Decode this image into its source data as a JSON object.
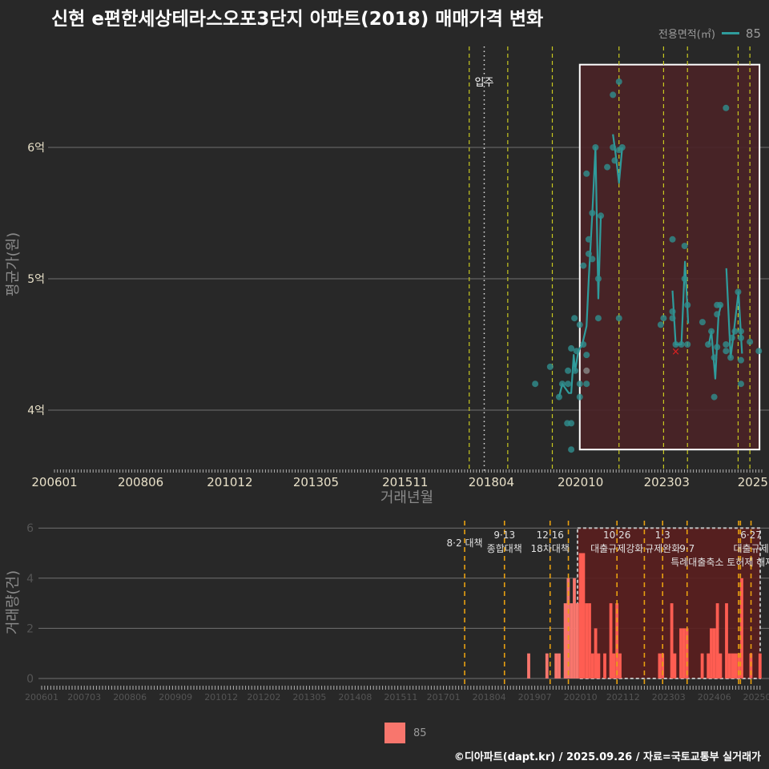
{
  "title": "신현 e편한세상테라스오포3단지 아파트(2018) 매매가격 변화",
  "legend": {
    "title": "전용면적(㎡)",
    "series_label": "85",
    "bar_label": "85"
  },
  "footer": "©디아파트(dapt.kr) / 2025.09.26 / 자료=국토교통부 실거래가",
  "colors": {
    "background": "#282828",
    "line": "#2f9c9c",
    "point": "#2f8f8f",
    "bar": "#f8766d",
    "highlight": "#5a2020",
    "policy_line_top": "#c8c820",
    "policy_line_bottom": "#e8a010",
    "marker_x": "#e02020"
  },
  "chart_data": [
    {
      "type": "scatter",
      "title": "신현 e편한세상테라스오포3단지 아파트(2018) 매매가격 변화",
      "xlabel": "거래년월",
      "ylabel": "평균가(원)",
      "ylim": [
        3.54,
        6.94
      ],
      "xlim_years": [
        2006.0,
        2025.85
      ],
      "yticks": [
        {
          "value": 4,
          "label": "4억"
        },
        {
          "value": 5,
          "label": "5억"
        },
        {
          "value": 6,
          "label": "6억"
        }
      ],
      "xticks": [
        "200601",
        "200806",
        "201012",
        "201305",
        "201511",
        "201804",
        "202010",
        "202303",
        "2025"
      ],
      "move_in": {
        "x": 2018.05,
        "label": "입주"
      },
      "policy_lines": [
        2017.63,
        2018.71,
        2019.96,
        2021.83,
        2023.08,
        2023.75,
        2025.17,
        2025.5
      ],
      "highlight": {
        "x": [
          2020.73,
          2025.77
        ],
        "y": [
          3.7,
          6.63
        ]
      },
      "points": [
        [
          2019.48,
          4.2
        ],
        [
          2019.9,
          4.33
        ],
        [
          2020.15,
          4.1
        ],
        [
          2020.24,
          4.2
        ],
        [
          2020.4,
          4.3
        ],
        [
          2020.4,
          4.2
        ],
        [
          2020.38,
          3.9
        ],
        [
          2020.49,
          3.9
        ],
        [
          2020.49,
          3.7
        ],
        [
          2020.49,
          4.47
        ],
        [
          2020.58,
          4.7
        ],
        [
          2020.64,
          4.45
        ],
        [
          2020.6,
          4.3
        ],
        [
          2020.73,
          4.65
        ],
        [
          2020.73,
          4.2
        ],
        [
          2020.73,
          4.1
        ],
        [
          2020.83,
          4.5
        ],
        [
          2020.92,
          4.42
        ],
        [
          2020.92,
          4.2
        ],
        [
          2020.92,
          5.8
        ],
        [
          2020.83,
          5.1
        ],
        [
          2020.98,
          5.3
        ],
        [
          2020.98,
          5.19
        ],
        [
          2021.08,
          5.5
        ],
        [
          2021.08,
          5.15
        ],
        [
          2021.17,
          6.0
        ],
        [
          2021.25,
          5.0
        ],
        [
          2021.25,
          4.7
        ],
        [
          2021.32,
          5.48
        ],
        [
          2021.5,
          5.85
        ],
        [
          2021.66,
          6.4
        ],
        [
          2021.66,
          6.0
        ],
        [
          2021.71,
          5.9
        ],
        [
          2021.83,
          6.5
        ],
        [
          2021.83,
          4.7
        ],
        [
          2021.83,
          5.98
        ],
        [
          2021.92,
          6.0
        ],
        [
          2023.0,
          4.65
        ],
        [
          2023.08,
          4.7
        ],
        [
          2023.33,
          5.3
        ],
        [
          2023.33,
          4.75
        ],
        [
          2023.33,
          4.7
        ],
        [
          2023.42,
          4.5
        ],
        [
          2023.58,
          4.5
        ],
        [
          2023.67,
          5.25
        ],
        [
          2023.67,
          5.0
        ],
        [
          2023.75,
          4.8
        ],
        [
          2023.75,
          4.5
        ],
        [
          2024.17,
          4.67
        ],
        [
          2024.33,
          4.5
        ],
        [
          2024.42,
          4.6
        ],
        [
          2024.5,
          4.1
        ],
        [
          2024.5,
          4.4
        ],
        [
          2024.58,
          4.48
        ],
        [
          2024.58,
          4.73
        ],
        [
          2024.58,
          4.8
        ],
        [
          2024.67,
          4.8
        ],
        [
          2024.83,
          6.3
        ],
        [
          2024.83,
          4.5
        ],
        [
          2024.83,
          4.45
        ],
        [
          2024.96,
          4.4
        ],
        [
          2025.0,
          4.55
        ],
        [
          2025.08,
          4.6
        ],
        [
          2025.17,
          4.9
        ],
        [
          2025.25,
          4.6
        ],
        [
          2025.25,
          4.55
        ],
        [
          2025.25,
          4.38
        ],
        [
          2025.25,
          4.2
        ],
        [
          2025.5,
          4.52
        ],
        [
          2025.75,
          4.45
        ]
      ],
      "gray_points": [
        [
          2020.92,
          4.3
        ]
      ],
      "cancelled_marker": [
        2023.42,
        4.45
      ],
      "trend_segments": [
        [
          [
            2020.15,
            4.1
          ],
          [
            2020.24,
            4.2
          ],
          [
            2020.42,
            4.13
          ],
          [
            2020.49,
            4.13
          ],
          [
            2020.56,
            4.42
          ],
          [
            2020.6,
            4.3
          ],
          [
            2020.69,
            4.45
          ],
          [
            2020.8,
            4.5
          ],
          [
            2020.92,
            4.64
          ],
          [
            2020.98,
            4.99
          ],
          [
            2021.08,
            5.49
          ],
          [
            2021.17,
            6.0
          ],
          [
            2021.25,
            4.85
          ],
          [
            2021.32,
            5.48
          ]
        ],
        [
          [
            2021.66,
            6.1
          ],
          [
            2021.73,
            5.96
          ],
          [
            2021.83,
            5.73
          ],
          [
            2021.92,
            6.0
          ]
        ],
        [
          [
            2023.33,
            4.91
          ],
          [
            2023.42,
            4.5
          ],
          [
            2023.58,
            4.5
          ],
          [
            2023.68,
            5.13
          ],
          [
            2023.77,
            4.66
          ]
        ],
        [
          [
            2024.35,
            4.5
          ],
          [
            2024.42,
            4.6
          ],
          [
            2024.53,
            4.24
          ],
          [
            2024.62,
            4.72
          ],
          [
            2024.69,
            4.8
          ]
        ],
        [
          [
            2024.84,
            5.08
          ],
          [
            2024.96,
            4.4
          ],
          [
            2025.03,
            4.55
          ],
          [
            2025.18,
            4.9
          ],
          [
            2025.28,
            4.43
          ]
        ]
      ]
    },
    {
      "type": "bar",
      "ylabel": "거래량(건)",
      "ylim": [
        0,
        6
      ],
      "yticks": [
        "0",
        "2",
        "4",
        "6"
      ],
      "xticks": [
        "200601",
        "200703",
        "200806",
        "200909",
        "201012",
        "201202",
        "201305",
        "201408",
        "201511",
        "201701",
        "201804",
        "201907",
        "202010",
        "202112",
        "202303",
        "202406",
        "20250"
      ],
      "highlight": {
        "x": [
          2020.67,
          2025.67
        ],
        "y": [
          0,
          6
        ]
      },
      "policy_lines": [
        2017.58,
        2018.67,
        2019.92,
        2020.42,
        2021.75,
        2022.5,
        2023.0,
        2023.67,
        2025.08,
        2025.13,
        2025.42
      ],
      "annotations": [
        {
          "x": 2017.58,
          "lines": [
            "8·2 대책"
          ]
        },
        {
          "x": 2018.67,
          "lines": [
            "9·13",
            "종합대책"
          ]
        },
        {
          "x": 2019.92,
          "lines": [
            "12·16",
            "18차대책"
          ]
        },
        {
          "x": 2021.75,
          "lines": [
            "10·26",
            "대출규제강화"
          ]
        },
        {
          "x": 2023.0,
          "lines": [
            "1·3",
            "규제완화"
          ]
        },
        {
          "x": 2023.67,
          "lines": [
            "9·7",
            "특례대출축소 토허제 해제"
          ]
        },
        {
          "x": 2025.42,
          "lines": [
            "6·27",
            "대출규제"
          ]
        }
      ],
      "bars": [
        [
          "201905",
          1
        ],
        [
          "201911",
          1
        ],
        [
          "202002",
          1
        ],
        [
          "202003",
          1
        ],
        [
          "202005",
          3
        ],
        [
          "202006",
          4
        ],
        [
          "202007",
          3
        ],
        [
          "202008",
          4
        ],
        [
          "202009",
          3
        ],
        [
          "202010",
          5
        ],
        [
          "202011",
          5
        ],
        [
          "202012",
          3
        ],
        [
          "202101",
          3
        ],
        [
          "202102",
          1
        ],
        [
          "202103",
          2
        ],
        [
          "202104",
          1
        ],
        [
          "202106",
          1
        ],
        [
          "202108",
          3
        ],
        [
          "202109",
          1
        ],
        [
          "202110",
          3
        ],
        [
          "202111",
          1
        ],
        [
          "202212",
          1
        ],
        [
          "202301",
          1
        ],
        [
          "202304",
          3
        ],
        [
          "202305",
          1
        ],
        [
          "202307",
          2
        ],
        [
          "202308",
          2
        ],
        [
          "202309",
          2
        ],
        [
          "202402",
          1
        ],
        [
          "202404",
          1
        ],
        [
          "202405",
          2
        ],
        [
          "202406",
          2
        ],
        [
          "202407",
          3
        ],
        [
          "202408",
          1
        ],
        [
          "202410",
          3
        ],
        [
          "202411",
          1
        ],
        [
          "202412",
          1
        ],
        [
          "202501",
          1
        ],
        [
          "202502",
          1
        ],
        [
          "202503",
          4
        ],
        [
          "202506",
          1
        ],
        [
          "202509",
          1
        ]
      ]
    }
  ]
}
